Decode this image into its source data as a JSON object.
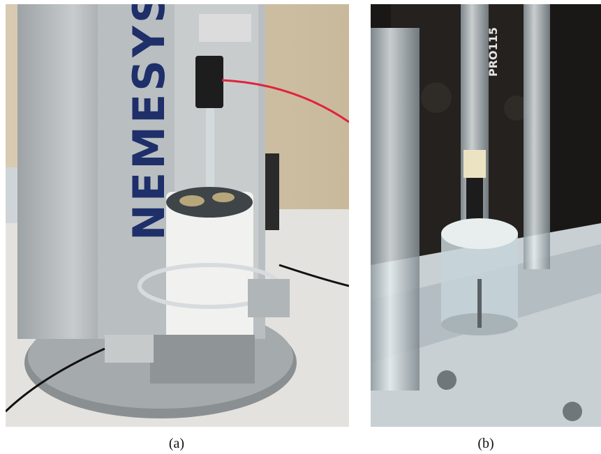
{
  "panels": [
    {
      "caption": "(a)",
      "photo_text": "NEMESYS"
    },
    {
      "caption": "(b)",
      "photo_text": "PRO115"
    }
  ]
}
